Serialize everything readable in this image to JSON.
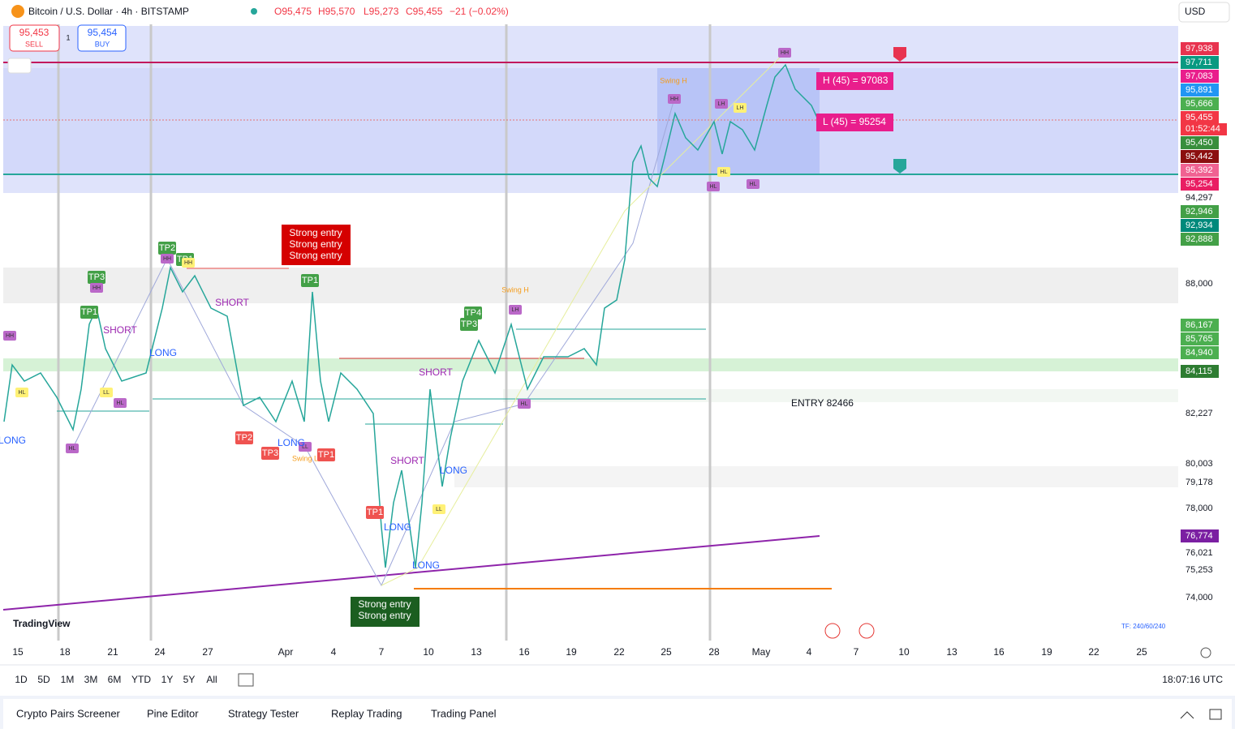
{
  "header": {
    "symbol": "Bitcoin / U.S. Dollar · 4h · BITSTAMP",
    "ohlc": [
      "O95,475",
      "H95,570",
      "L95,273",
      "C95,455",
      "−21 (−0.02%)"
    ],
    "currency": "USD"
  },
  "trade": {
    "sell_price": "95,453",
    "sell": "SELL",
    "qty": "1",
    "buy_price": "95,454",
    "buy": "BUY"
  },
  "price_scale": [
    {
      "text": "97,938",
      "color": "#e8334f"
    },
    {
      "text": "97,711",
      "color": "#089981"
    },
    {
      "text": "97,083",
      "color": "#e91e8c"
    },
    {
      "text": "95,891",
      "color": "#2196f3"
    },
    {
      "text": "95,666",
      "color": "#4caf50"
    },
    {
      "text": "95,455",
      "color": "#f23645"
    },
    {
      "text": "95,450",
      "color": "#388e3c"
    },
    {
      "text": "95,442",
      "color": "#8b0f0f"
    },
    {
      "text": "95,392",
      "color": "#f06292"
    },
    {
      "text": "95,254",
      "color": "#e91e63"
    },
    {
      "text": "94,297"
    },
    {
      "text": "92,946",
      "color": "#43a047"
    },
    {
      "text": "92,934",
      "color": "#00897b"
    },
    {
      "text": "92,888",
      "color": "#43a047"
    },
    {
      "text": "88,000"
    },
    {
      "text": "86,167",
      "color": "#4caf50"
    },
    {
      "text": "85,765",
      "color": "#4caf50"
    },
    {
      "text": "84,940",
      "color": "#4caf50"
    },
    {
      "text": "84,115",
      "color": "#2e7d32"
    },
    {
      "text": "82,227"
    },
    {
      "text": "80,003"
    },
    {
      "text": "79,178"
    },
    {
      "text": "78,000"
    },
    {
      "text": "76,774",
      "color": "#7b1fa2"
    },
    {
      "text": "76,021"
    },
    {
      "text": "75,253"
    },
    {
      "text": "74,000"
    }
  ],
  "countdown": "01:52:44",
  "dates": [
    "15",
    "18",
    "21",
    "24",
    "27",
    "Apr",
    "4",
    "7",
    "10",
    "13",
    "16",
    "19",
    "22",
    "25",
    "28",
    "May",
    "4",
    "7",
    "10",
    "13",
    "16",
    "19",
    "22",
    "25"
  ],
  "boxes": {
    "high": "H (45) = 97083",
    "low": "L (45) = 95254",
    "entry": "ENTRY 82466"
  },
  "strong_entries": [
    [
      "Strong entry",
      "Strong entry",
      "Strong entry"
    ],
    [
      "Strong entry",
      "Strong entry"
    ]
  ],
  "annotations": [
    {
      "text": "TP3",
      "color": "#43a047"
    },
    {
      "text": "TP1",
      "color": "#43a047"
    },
    {
      "text": "TP2",
      "color": "#43a047"
    },
    {
      "text": "TP1",
      "color": "#43a047"
    },
    {
      "text": "TP1",
      "color": "#43a047"
    },
    {
      "text": "TP4",
      "color": "#43a047"
    },
    {
      "text": "TP3",
      "color": "#43a047"
    },
    {
      "text": "TP2",
      "color": "#ef5350"
    },
    {
      "text": "TP3",
      "color": "#ef5350"
    },
    {
      "text": "TP1",
      "color": "#ef5350"
    },
    {
      "text": "TP1",
      "color": "#ef5350"
    },
    {
      "text": "HH",
      "color": "#ba68c8"
    },
    {
      "text": "HH",
      "color": "#ba68c8"
    },
    {
      "text": "HH",
      "color": "#ba68c8"
    },
    {
      "text": "HH",
      "color": "#fff176"
    },
    {
      "text": "HL",
      "color": "#ba68c8"
    },
    {
      "text": "HL",
      "color": "#ba68c8"
    },
    {
      "text": "HL",
      "color": "#fff176"
    },
    {
      "text": "LL",
      "color": "#fff176"
    },
    {
      "text": "LL",
      "color": "#ba68c8"
    },
    {
      "text": "HH",
      "color": "#ba68c8"
    },
    {
      "text": "LH",
      "color": "#ba68c8"
    },
    {
      "text": "LH",
      "color": "#fff176"
    },
    {
      "text": "HL",
      "color": "#fff176"
    },
    {
      "text": "HL",
      "color": "#ba68c8"
    },
    {
      "text": "HL",
      "color": "#ba68c8"
    },
    {
      "text": "HH",
      "color": "#ba68c8"
    },
    {
      "text": "LH",
      "color": "#ba68c8"
    },
    {
      "text": "HL",
      "color": "#ba68c8"
    },
    {
      "text": "LL",
      "color": "#fff176"
    }
  ],
  "signals": [
    {
      "text": "SHORT",
      "color": "#9c27b0"
    },
    {
      "text": "LONG",
      "color": "#2962ff"
    },
    {
      "text": "SHORT",
      "color": "#9c27b0"
    },
    {
      "text": "SHORT",
      "color": "#9c27b0"
    },
    {
      "text": "SHORT",
      "color": "#9c27b0"
    },
    {
      "text": "LONG",
      "color": "#2962ff"
    },
    {
      "text": "LONG",
      "color": "#2962ff"
    },
    {
      "text": "LONG",
      "color": "#2962ff"
    },
    {
      "text": "LONG",
      "color": "#2962ff"
    },
    {
      "text": "LONG",
      "color": "#2962ff"
    },
    {
      "text": "Swing H",
      "color": "#f59c1a"
    },
    {
      "text": "Swing H",
      "color": "#f59c1a"
    },
    {
      "text": "Swing L",
      "color": "#f59c1a"
    }
  ],
  "logo": "TradingView",
  "tf_note": "TF: 240/60/240",
  "timeframes": [
    "1D",
    "5D",
    "1M",
    "3M",
    "6M",
    "YTD",
    "1Y",
    "5Y",
    "All"
  ],
  "clock": "18:07:16 UTC",
  "tabs": [
    "Crypto Pairs Screener",
    "Pine Editor",
    "Strategy Tester",
    "Replay Trading",
    "Trading Panel"
  ]
}
